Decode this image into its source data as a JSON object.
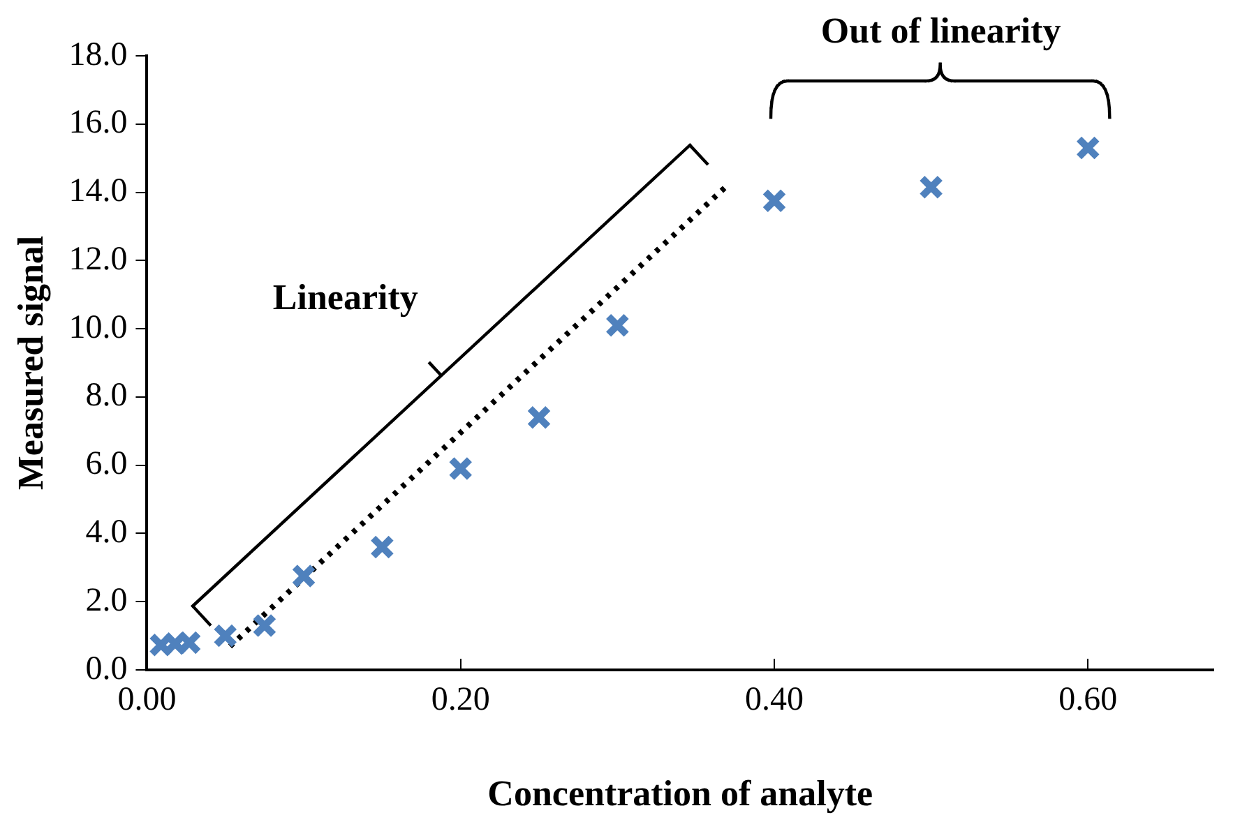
{
  "chart_data": {
    "type": "scatter",
    "xlabel": "Concentration of analyte",
    "ylabel": "Measured signal",
    "annotations": [
      "Linearity",
      "Out of linearity"
    ],
    "xlim": [
      0,
      0.68
    ],
    "xticks": [
      {
        "value": 0,
        "label": "0.00"
      },
      {
        "value": 0.2,
        "label": "0.20"
      },
      {
        "value": 0.4,
        "label": "0.40"
      },
      {
        "value": 0.6,
        "label": "0.60"
      }
    ],
    "ylim": [
      0,
      18
    ],
    "yticks": [
      {
        "value": 0,
        "label": "0.0"
      },
      {
        "value": 2,
        "label": "2.0"
      },
      {
        "value": 4,
        "label": "4.0"
      },
      {
        "value": 6,
        "label": "6.0"
      },
      {
        "value": 8,
        "label": "8.0"
      },
      {
        "value": 10,
        "label": "10.0"
      },
      {
        "value": 12,
        "label": "12.0"
      },
      {
        "value": 14,
        "label": "14.0"
      },
      {
        "value": 16,
        "label": "16.0"
      },
      {
        "value": 18,
        "label": "18.0"
      }
    ],
    "grid": false,
    "legend": false,
    "series": [
      {
        "type": "scatter",
        "color": "#4f81bd",
        "marker": "cross",
        "x": [
          0.009,
          0.018,
          0.027,
          0.05,
          0.075,
          0.1,
          0.15,
          0.2,
          0.25,
          0.3,
          0.4,
          0.5,
          0.6
        ],
        "values": [
          0.73,
          0.77,
          0.8,
          1.0,
          1.3,
          2.75,
          3.6,
          5.9,
          7.4,
          10.1,
          13.75,
          14.15,
          15.3
        ]
      },
      {
        "type": "line",
        "color": "#000000",
        "marker": "none",
        "line_style": "dotted",
        "x": [
          0.053,
          0.37
        ],
        "values": [
          0.69,
          14.2
        ]
      }
    ]
  }
}
